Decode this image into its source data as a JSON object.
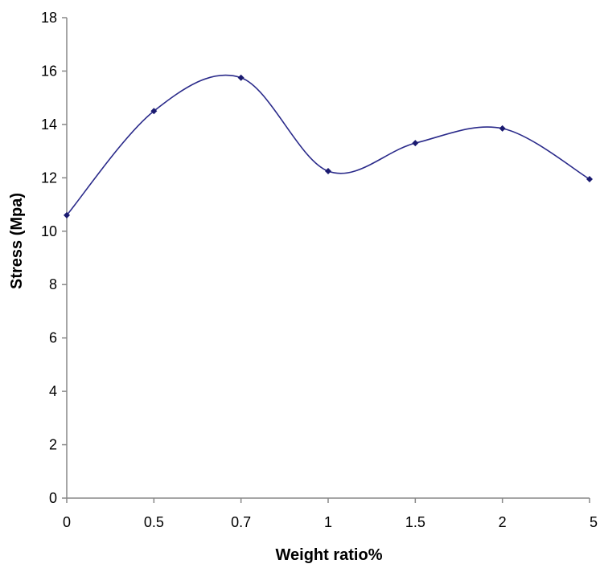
{
  "chart_data": {
    "type": "line",
    "title": "",
    "xlabel": "Weight ratio%",
    "ylabel": "Stress (Mpa)",
    "categories": [
      "0",
      "0.5",
      "0.7",
      "1",
      "1.5",
      "2",
      "5"
    ],
    "series": [
      {
        "values": [
          10.6,
          14.5,
          15.75,
          12.25,
          13.3,
          13.85,
          11.95
        ],
        "color": "#2a2a8a"
      }
    ],
    "ylim": [
      0,
      18
    ],
    "yticks": [
      "0",
      "2",
      "4",
      "6",
      "8",
      "10",
      "12",
      "14",
      "16",
      "18"
    ],
    "grid": false,
    "legend": "none",
    "smooth": true
  }
}
